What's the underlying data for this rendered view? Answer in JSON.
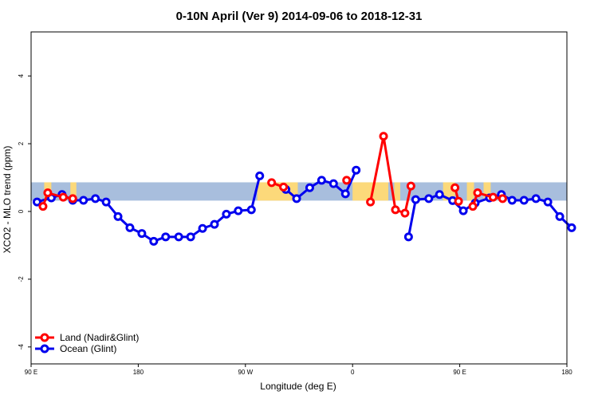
{
  "chart_data": {
    "type": "line",
    "title": "0-10N April (Ver 9)   2014-09-06 to 2018-12-31",
    "xlabel": "Longitude (deg E)",
    "ylabel": "XCO2 - MLO trend (ppm)",
    "xlim": [
      90,
      540
    ],
    "ylim": [
      -4.5,
      5.3
    ],
    "x_ticks": [
      {
        "value": 90,
        "label": "90 E"
      },
      {
        "value": 180,
        "label": "180"
      },
      {
        "value": 270,
        "label": "90 W"
      },
      {
        "value": 360,
        "label": "0"
      },
      {
        "value": 450,
        "label": "90 E"
      },
      {
        "value": 540,
        "label": "180"
      }
    ],
    "y_ticks": [
      {
        "value": -4,
        "label": "-4"
      },
      {
        "value": -2,
        "label": "-2"
      },
      {
        "value": 0,
        "label": "0"
      },
      {
        "value": 2,
        "label": "2"
      },
      {
        "value": 4,
        "label": "4"
      }
    ],
    "background_band": {
      "y_min": 0.32,
      "y_max": 0.86,
      "color": "#a8bedd",
      "land_color": "#fcd97a"
    },
    "land_regions": [
      {
        "x0": 101,
        "x1": 107
      },
      {
        "x0": 123,
        "x1": 128
      },
      {
        "x0": 280,
        "x1": 314
      },
      {
        "x0": 360,
        "x1": 390
      },
      {
        "x0": 395,
        "x1": 400
      },
      {
        "x0": 436,
        "x1": 446
      },
      {
        "x0": 456,
        "x1": 462
      },
      {
        "x0": 470,
        "x1": 476
      }
    ],
    "legend_position": "bottom-left",
    "series": [
      {
        "name": "Land (Nadir&Glint)",
        "color": "#ff0000",
        "segments": [
          [
            [
              100,
              0.15
            ],
            [
              104,
              0.55
            ],
            [
              117,
              0.42
            ],
            [
              125,
              0.38
            ]
          ],
          [
            [
              292,
              0.85
            ],
            [
              302,
              0.72
            ]
          ],
          [
            [
              355,
              0.92
            ]
          ],
          [
            [
              375,
              0.28
            ],
            [
              386,
              2.22
            ],
            [
              396,
              0.05
            ],
            [
              404,
              -0.05
            ],
            [
              409,
              0.75
            ]
          ],
          [
            [
              446,
              0.7
            ],
            [
              449,
              0.3
            ]
          ],
          [
            [
              461,
              0.15
            ],
            [
              465,
              0.55
            ],
            [
              478,
              0.42
            ],
            [
              486,
              0.38
            ]
          ]
        ]
      },
      {
        "name": "Ocean (Glint)",
        "color": "#0000ee",
        "segments": [
          [
            [
              95,
              0.28
            ],
            [
              107,
              0.4
            ],
            [
              116,
              0.5
            ],
            [
              125,
              0.33
            ],
            [
              134,
              0.33
            ],
            [
              144,
              0.38
            ],
            [
              153,
              0.28
            ],
            [
              163,
              -0.15
            ],
            [
              173,
              -0.48
            ],
            [
              183,
              -0.65
            ],
            [
              193,
              -0.88
            ],
            [
              203,
              -0.75
            ],
            [
              214,
              -0.75
            ],
            [
              224,
              -0.75
            ],
            [
              234,
              -0.5
            ],
            [
              244,
              -0.38
            ],
            [
              254,
              -0.08
            ],
            [
              264,
              0.02
            ],
            [
              275,
              0.05
            ],
            [
              282,
              1.05
            ]
          ],
          [
            [
              304,
              0.65
            ],
            [
              313,
              0.38
            ],
            [
              324,
              0.7
            ],
            [
              334,
              0.92
            ],
            [
              344,
              0.82
            ],
            [
              354,
              0.52
            ],
            [
              363,
              1.22
            ]
          ],
          [
            [
              407,
              -0.75
            ],
            [
              413,
              0.35
            ],
            [
              424,
              0.38
            ],
            [
              433,
              0.5
            ],
            [
              444,
              0.32
            ],
            [
              453,
              0.02
            ],
            [
              463,
              0.25
            ],
            [
              475,
              0.4
            ],
            [
              485,
              0.5
            ],
            [
              494,
              0.33
            ],
            [
              504,
              0.33
            ],
            [
              514,
              0.38
            ],
            [
              524,
              0.28
            ],
            [
              534,
              -0.15
            ],
            [
              544,
              -0.48
            ]
          ]
        ]
      }
    ]
  }
}
